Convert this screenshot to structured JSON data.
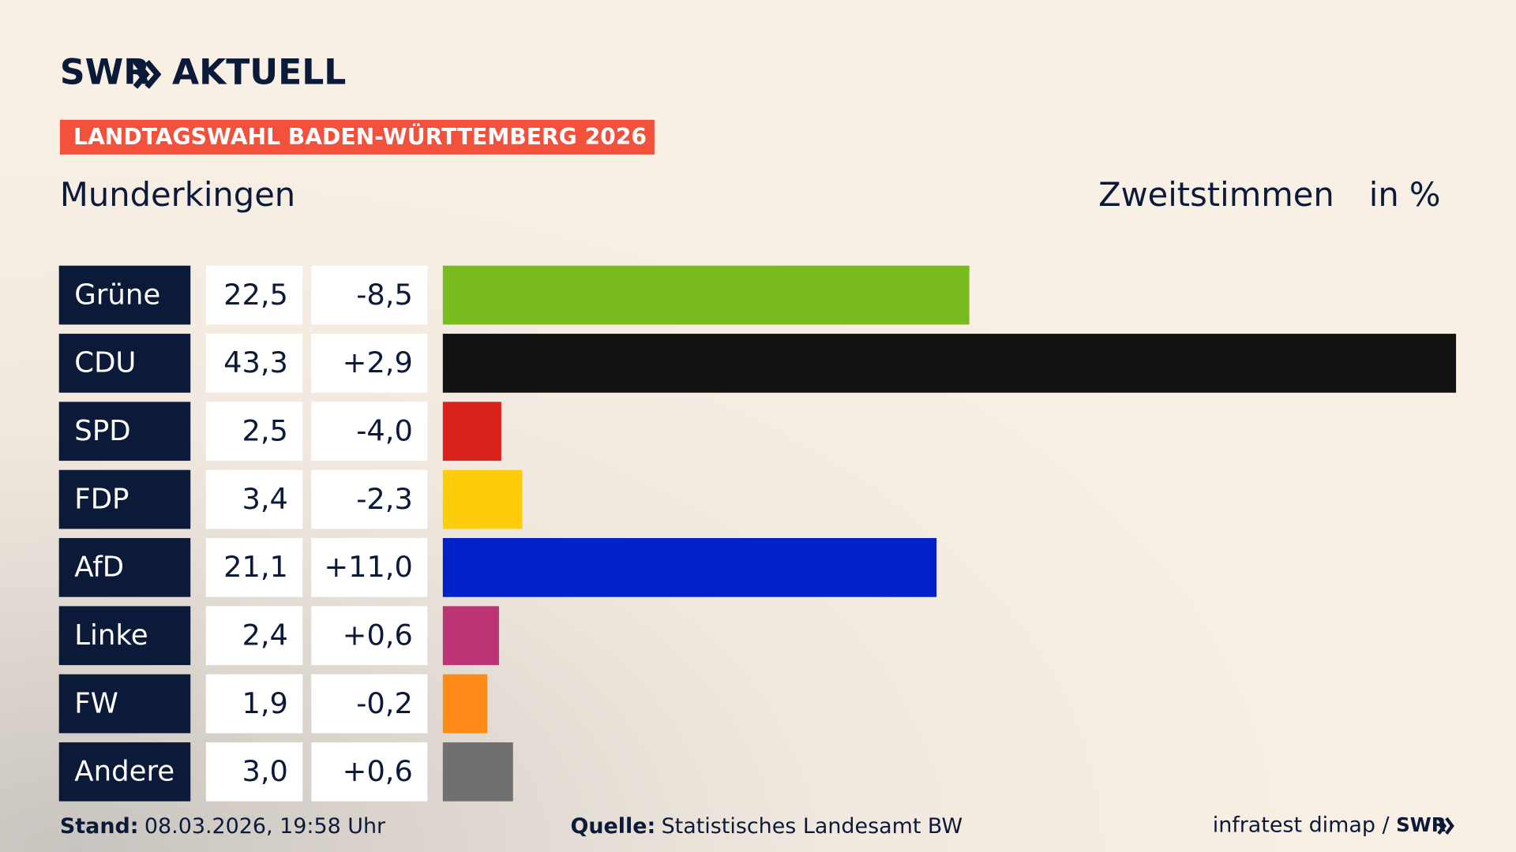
{
  "header": {
    "brand": "SWR",
    "brand_suffix": "AKTUELL",
    "banner": "LANDTAGSWAHL BADEN-WÜRTTEMBERG 2026"
  },
  "chart_data": {
    "type": "bar",
    "title": "Munderkingen",
    "subtitle": "Zweitstimmen",
    "unit_label": "in %",
    "categories": [
      "Grüne",
      "CDU",
      "SPD",
      "FDP",
      "AfD",
      "Linke",
      "FW",
      "Andere"
    ],
    "values": [
      22.5,
      43.3,
      2.5,
      3.4,
      21.1,
      2.4,
      1.9,
      3.0
    ],
    "value_labels": [
      "22,5",
      "43,3",
      "2,5",
      "3,4",
      "21,1",
      "2,4",
      "1,9",
      "3,0"
    ],
    "changes": [
      "-8,5",
      "+2,9",
      "-4,0",
      "-2,3",
      "+11,0",
      "+0,6",
      "-0,2",
      "+0,6"
    ],
    "colors": [
      "#78bc1e",
      "#121212",
      "#d8221c",
      "#fecd0a",
      "#0021c8",
      "#bc3475",
      "#fe8b17",
      "#707070"
    ]
  },
  "footer": {
    "stand_label": "Stand:",
    "stand": "08.03.2026, 19:58 Uhr",
    "source_label": "Quelle:",
    "source": "Statistisches Landesamt BW",
    "credit": "infratest dimap /",
    "credit_brand": "SWR"
  }
}
